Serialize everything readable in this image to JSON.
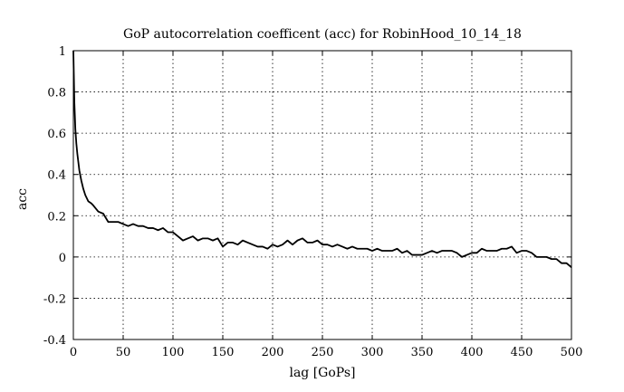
{
  "chart_data": {
    "type": "line",
    "title": "GoP autocorrelation coefficent (acc) for RobinHood_10_14_18",
    "xlabel": "lag [GoPs]",
    "ylabel": "acc",
    "xlim": [
      0,
      500
    ],
    "ylim": [
      -0.4,
      1
    ],
    "xticks": [
      "0",
      "50",
      "100",
      "150",
      "200",
      "250",
      "300",
      "350",
      "400",
      "450",
      "500"
    ],
    "yticks": [
      "-0.4",
      "-0.2",
      "0",
      "0.2",
      "0.4",
      "0.6",
      "0.8",
      "1"
    ],
    "grid": true,
    "legend": "none",
    "line_color": "#000000",
    "series": [
      {
        "x": [
          0,
          1,
          2,
          3,
          4,
          5,
          6,
          8,
          10,
          12,
          15,
          18,
          20,
          25,
          30,
          35,
          40,
          45,
          50,
          55,
          60,
          65,
          70,
          75,
          80,
          85,
          90,
          95,
          100,
          105,
          110,
          115,
          120,
          125,
          130,
          135,
          140,
          145,
          150,
          155,
          160,
          165,
          170,
          175,
          180,
          185,
          190,
          195,
          200,
          205,
          210,
          215,
          220,
          225,
          230,
          235,
          240,
          245,
          250,
          255,
          260,
          265,
          270,
          275,
          280,
          285,
          290,
          295,
          300,
          305,
          310,
          315,
          320,
          325,
          330,
          335,
          340,
          345,
          350,
          355,
          360,
          365,
          370,
          375,
          380,
          385,
          390,
          395,
          400,
          405,
          410,
          415,
          420,
          425,
          430,
          435,
          440,
          445,
          450,
          455,
          460,
          465,
          470,
          475,
          480,
          485,
          490,
          495,
          500
        ],
        "values": [
          1.0,
          0.75,
          0.62,
          0.55,
          0.5,
          0.46,
          0.42,
          0.37,
          0.33,
          0.3,
          0.27,
          0.26,
          0.25,
          0.22,
          0.21,
          0.17,
          0.17,
          0.17,
          0.16,
          0.15,
          0.16,
          0.15,
          0.15,
          0.14,
          0.14,
          0.13,
          0.14,
          0.12,
          0.12,
          0.1,
          0.08,
          0.09,
          0.1,
          0.08,
          0.09,
          0.09,
          0.08,
          0.09,
          0.05,
          0.07,
          0.07,
          0.06,
          0.08,
          0.07,
          0.06,
          0.05,
          0.05,
          0.04,
          0.06,
          0.05,
          0.06,
          0.08,
          0.06,
          0.08,
          0.09,
          0.07,
          0.07,
          0.08,
          0.06,
          0.06,
          0.05,
          0.06,
          0.05,
          0.04,
          0.05,
          0.04,
          0.04,
          0.04,
          0.03,
          0.04,
          0.03,
          0.03,
          0.03,
          0.04,
          0.02,
          0.03,
          0.01,
          0.01,
          0.01,
          0.02,
          0.03,
          0.02,
          0.03,
          0.03,
          0.03,
          0.02,
          0.0,
          0.01,
          0.02,
          0.02,
          0.04,
          0.03,
          0.03,
          0.03,
          0.04,
          0.04,
          0.05,
          0.02,
          0.03,
          0.03,
          0.02,
          0.0,
          0.0,
          0.0,
          -0.01,
          -0.01,
          -0.03,
          -0.03,
          -0.05
        ]
      }
    ]
  }
}
